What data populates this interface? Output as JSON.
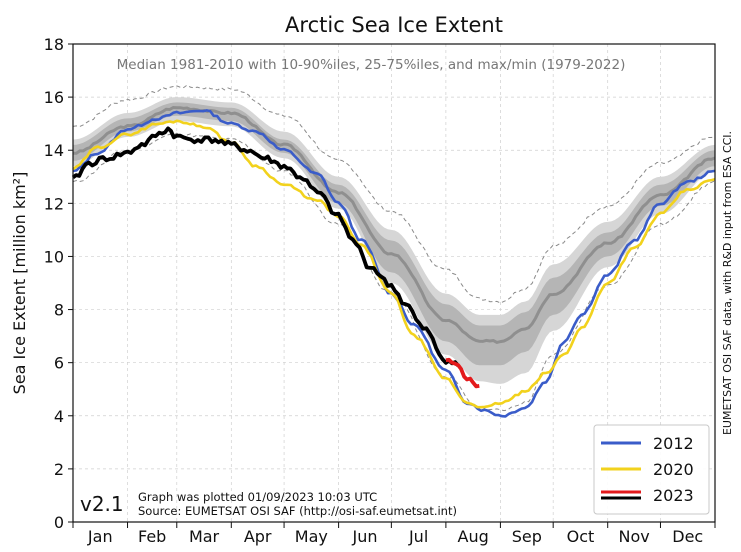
{
  "chart_data": {
    "type": "line",
    "title": "Arctic Sea Ice Extent",
    "subtitle": "Median 1981-2010 with 10-90%iles, 25-75%iles, and max/min (1979-2022)",
    "ylabel": "Sea Ice Extent [million km²]",
    "ylim": [
      0,
      18
    ],
    "xlim": [
      1,
      366
    ],
    "yticks": [
      0,
      2,
      4,
      6,
      8,
      10,
      12,
      14,
      16,
      18
    ],
    "months": [
      "Jan",
      "Feb",
      "Mar",
      "Apr",
      "May",
      "Jun",
      "Jul",
      "Aug",
      "Sep",
      "Oct",
      "Nov",
      "Dec"
    ],
    "grid": true,
    "legend_position": "bottom-right",
    "climatology": {
      "day": [
        1,
        32,
        60,
        91,
        121,
        152,
        182,
        213,
        232,
        244,
        258,
        274,
        305,
        335,
        366
      ],
      "median": [
        13.9,
        14.9,
        15.6,
        15.4,
        14.2,
        12.4,
        10.1,
        7.6,
        6.8,
        6.8,
        7.3,
        8.6,
        10.5,
        12.3,
        13.7
      ],
      "p25": [
        13.6,
        14.7,
        15.3,
        15.1,
        13.9,
        12.0,
        9.4,
        6.8,
        5.9,
        5.9,
        6.4,
        7.8,
        10.0,
        11.9,
        13.4
      ],
      "p75": [
        14.2,
        15.2,
        15.8,
        15.6,
        14.4,
        12.7,
        10.6,
        8.2,
        7.4,
        7.4,
        7.9,
        9.2,
        10.9,
        12.7,
        14.0
      ],
      "p10": [
        13.4,
        14.5,
        15.1,
        14.9,
        13.7,
        11.8,
        9.0,
        6.3,
        5.3,
        5.2,
        5.6,
        7.2,
        9.6,
        11.6,
        13.2
      ],
      "p90": [
        14.4,
        15.4,
        16.0,
        15.8,
        14.7,
        13.0,
        11.0,
        8.6,
        7.8,
        7.8,
        8.3,
        9.7,
        11.3,
        13.0,
        14.2
      ],
      "min": [
        12.8,
        14.0,
        14.6,
        14.4,
        13.2,
        11.2,
        8.6,
        5.5,
        4.3,
        4.2,
        4.5,
        6.3,
        8.9,
        11.2,
        12.8
      ],
      "max": [
        14.9,
        15.9,
        16.4,
        16.3,
        15.3,
        13.6,
        11.7,
        9.5,
        8.4,
        8.3,
        8.8,
        10.4,
        11.9,
        13.5,
        14.5
      ]
    },
    "series": [
      {
        "name": "2012",
        "color": "#3a5cc9",
        "day": [
          1,
          15,
          32,
          50,
          60,
          75,
          91,
          105,
          121,
          140,
          152,
          165,
          182,
          195,
          213,
          225,
          235,
          245,
          258,
          270,
          280,
          290,
          305,
          320,
          335,
          350,
          366
        ],
        "values": [
          13.2,
          13.9,
          14.8,
          15.2,
          15.4,
          15.5,
          15.0,
          14.7,
          14.0,
          13.1,
          12.0,
          10.6,
          8.6,
          7.4,
          5.7,
          4.5,
          4.2,
          4.0,
          4.3,
          5.3,
          6.8,
          7.8,
          9.3,
          10.6,
          12.0,
          12.8,
          13.2
        ]
      },
      {
        "name": "2020",
        "color": "#f2d21d",
        "day": [
          1,
          15,
          32,
          50,
          60,
          75,
          91,
          105,
          121,
          140,
          152,
          165,
          182,
          195,
          213,
          225,
          235,
          245,
          258,
          270,
          280,
          290,
          305,
          320,
          335,
          350,
          366
        ],
        "values": [
          13.3,
          14.1,
          14.6,
          15.0,
          15.1,
          14.9,
          14.3,
          13.4,
          12.7,
          12.1,
          11.5,
          10.4,
          8.6,
          7.0,
          5.4,
          4.5,
          4.3,
          4.5,
          4.9,
          5.6,
          6.3,
          7.3,
          9.0,
          10.3,
          11.6,
          12.5,
          12.9
        ]
      },
      {
        "name": "2023",
        "color": "#000000",
        "day": [
          1,
          10,
          20,
          32,
          40,
          50,
          55,
          60,
          70,
          80,
          91,
          100,
          110,
          121,
          130,
          140,
          152,
          160,
          170,
          182,
          190,
          200,
          213,
          220
        ],
        "values": [
          12.9,
          13.5,
          13.7,
          13.9,
          14.2,
          14.6,
          14.8,
          14.5,
          14.4,
          14.4,
          14.2,
          14.0,
          13.7,
          13.4,
          13.0,
          12.4,
          11.5,
          10.6,
          9.6,
          8.9,
          8.2,
          7.3,
          6.1,
          5.9
        ],
        "recent_color": "#e31a1c",
        "recent_day": [
          213,
          220,
          225,
          232
        ],
        "recent_values": [
          6.1,
          5.9,
          5.4,
          5.1
        ]
      }
    ]
  },
  "annotations": {
    "version": "v2.1",
    "plotted": "Graph was plotted 01/09/2023 10:03 UTC",
    "source": "Source: EUMETSAT OSI SAF (http://osi-saf.eumetsat.int)",
    "credit": "EUMETSAT OSI SAF data, with R&D input from ESA CCI."
  }
}
